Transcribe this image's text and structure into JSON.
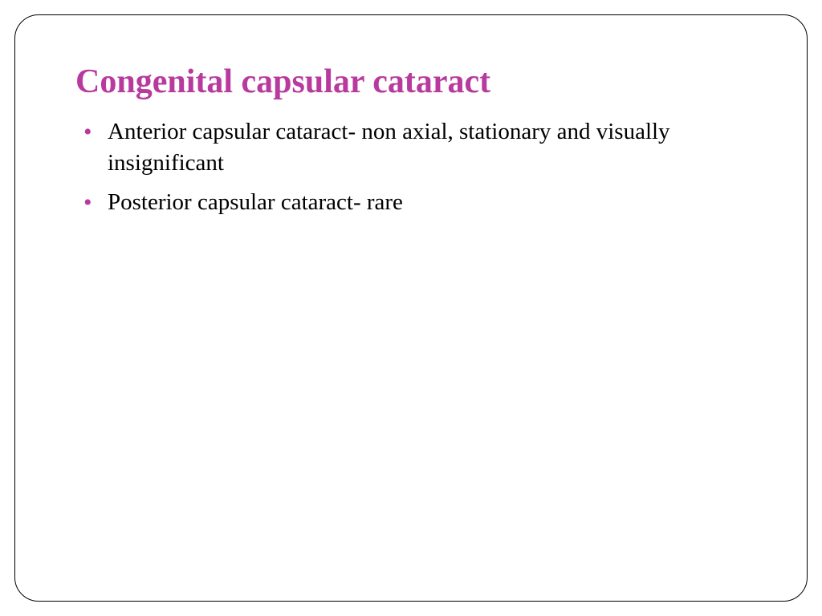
{
  "slide": {
    "title": "Congenital capsular cataract",
    "title_color": "#b83a9e",
    "bullet_color": "#b83a9e",
    "text_color": "#000000",
    "background_color": "#ffffff",
    "border_color": "#000000",
    "border_radius": 30,
    "title_fontsize": 42,
    "body_fontsize": 29,
    "bullets": [
      "Anterior capsular cataract- non axial, stationary and visually insignificant",
      "Posterior capsular cataract- rare"
    ]
  }
}
